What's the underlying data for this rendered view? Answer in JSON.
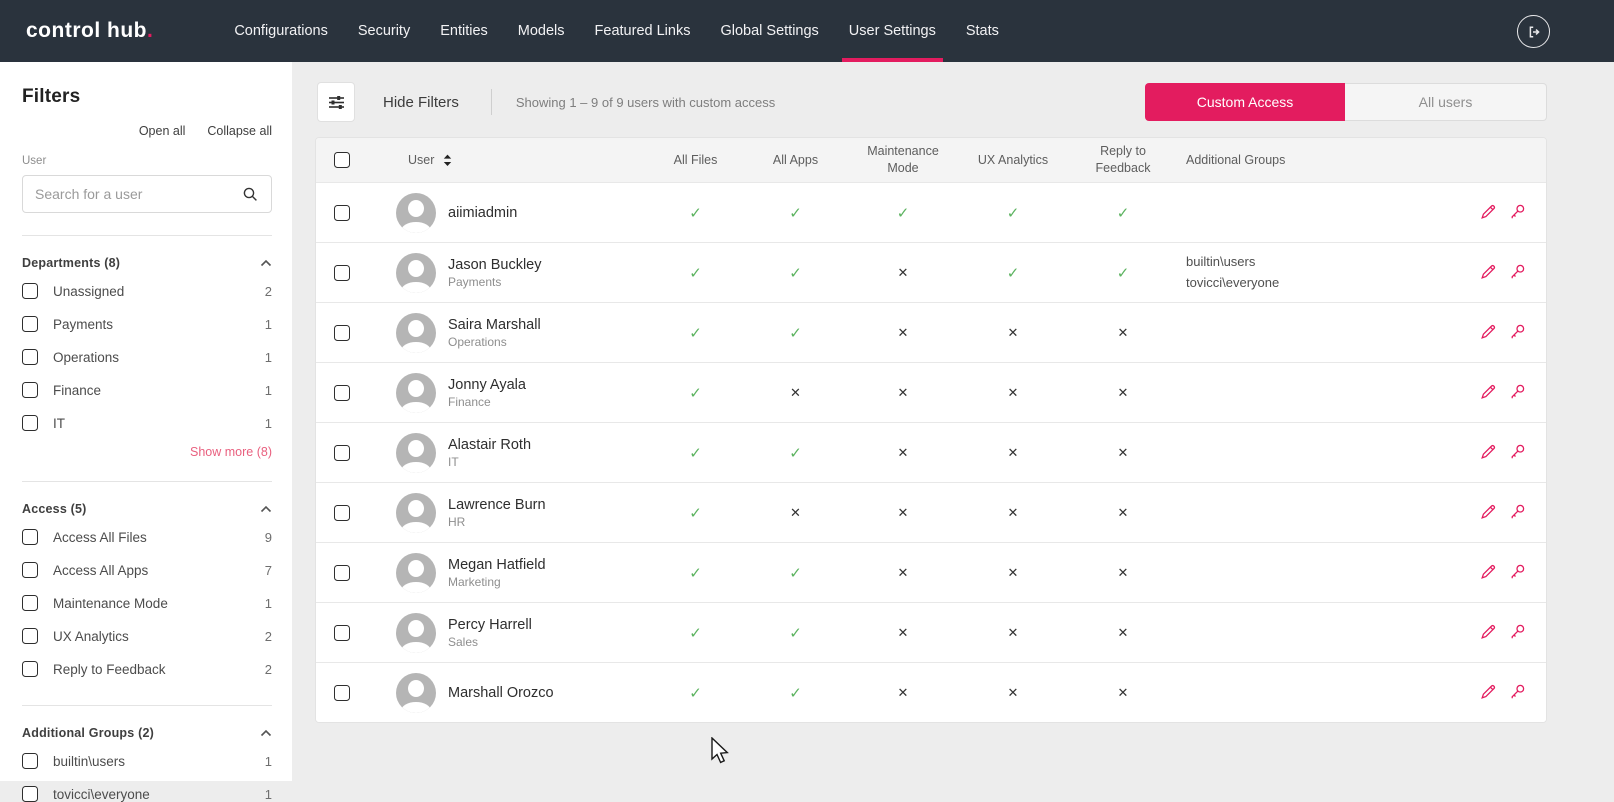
{
  "nav": {
    "logo": "control hub",
    "logo_dot": ".",
    "items": [
      {
        "label": "Configurations",
        "active": false
      },
      {
        "label": "Security",
        "active": false
      },
      {
        "label": "Entities",
        "active": false
      },
      {
        "label": "Models",
        "active": false
      },
      {
        "label": "Featured Links",
        "active": false
      },
      {
        "label": "Global Settings",
        "active": false
      },
      {
        "label": "User Settings",
        "active": true
      },
      {
        "label": "Stats",
        "active": false
      }
    ]
  },
  "sidebar": {
    "title": "Filters",
    "open_all": "Open all",
    "collapse_all": "Collapse all",
    "user_label": "User",
    "search_placeholder": "Search for a user",
    "sections": [
      {
        "title": "Departments (8)",
        "items": [
          {
            "label": "Unassigned",
            "count": "2"
          },
          {
            "label": "Payments",
            "count": "1"
          },
          {
            "label": "Operations",
            "count": "1"
          },
          {
            "label": "Finance",
            "count": "1"
          },
          {
            "label": "IT",
            "count": "1"
          }
        ],
        "show_more": "Show more (8)"
      },
      {
        "title": "Access (5)",
        "items": [
          {
            "label": "Access All Files",
            "count": "9"
          },
          {
            "label": "Access All Apps",
            "count": "7"
          },
          {
            "label": "Maintenance Mode",
            "count": "1"
          },
          {
            "label": "UX Analytics",
            "count": "2"
          },
          {
            "label": "Reply to Feedback",
            "count": "2"
          }
        ]
      },
      {
        "title": "Additional Groups (2)",
        "items": [
          {
            "label": "builtin\\users",
            "count": "1"
          },
          {
            "label": "tovicci\\everyone",
            "count": "1"
          }
        ]
      }
    ]
  },
  "toolbar": {
    "hide_filters_label": "Hide Filters",
    "showing_text": "Showing 1 – 9 of 9 users with custom access",
    "custom_access_label": "Custom Access",
    "all_users_label": "All users"
  },
  "table": {
    "columns": [
      "User",
      "All Files",
      "All Apps",
      "Maintenance Mode",
      "UX Analytics",
      "Reply to Feedback",
      "Additional Groups"
    ],
    "rows": [
      {
        "name": "aiimiadmin",
        "department": "",
        "permissions": [
          true,
          true,
          true,
          true,
          true
        ],
        "groups": []
      },
      {
        "name": "Jason Buckley",
        "department": "Payments",
        "permissions": [
          true,
          true,
          false,
          true,
          true
        ],
        "groups": [
          "builtin\\users",
          "tovicci\\everyone"
        ]
      },
      {
        "name": "Saira Marshall",
        "department": "Operations",
        "permissions": [
          true,
          true,
          false,
          false,
          false
        ],
        "groups": []
      },
      {
        "name": "Jonny Ayala",
        "department": "Finance",
        "permissions": [
          true,
          false,
          false,
          false,
          false
        ],
        "groups": []
      },
      {
        "name": "Alastair Roth",
        "department": "IT",
        "permissions": [
          true,
          true,
          false,
          false,
          false
        ],
        "groups": []
      },
      {
        "name": "Lawrence Burn",
        "department": "HR",
        "permissions": [
          true,
          false,
          false,
          false,
          false
        ],
        "groups": []
      },
      {
        "name": "Megan Hatfield",
        "department": "Marketing",
        "permissions": [
          true,
          true,
          false,
          false,
          false
        ],
        "groups": []
      },
      {
        "name": "Percy Harrell",
        "department": "Sales",
        "permissions": [
          true,
          true,
          false,
          false,
          false
        ],
        "groups": []
      },
      {
        "name": "Marshall Orozco",
        "department": "",
        "permissions": [
          true,
          true,
          false,
          false,
          false
        ],
        "groups": []
      }
    ],
    "check_glyph": "✓",
    "cross_glyph": "✕"
  },
  "colors": {
    "accent_pink": "#e31c5f",
    "nav_dark": "#2a333d",
    "check_green": "#5cb360",
    "cross_dark": "#333333",
    "page_bg": "#ededed"
  }
}
